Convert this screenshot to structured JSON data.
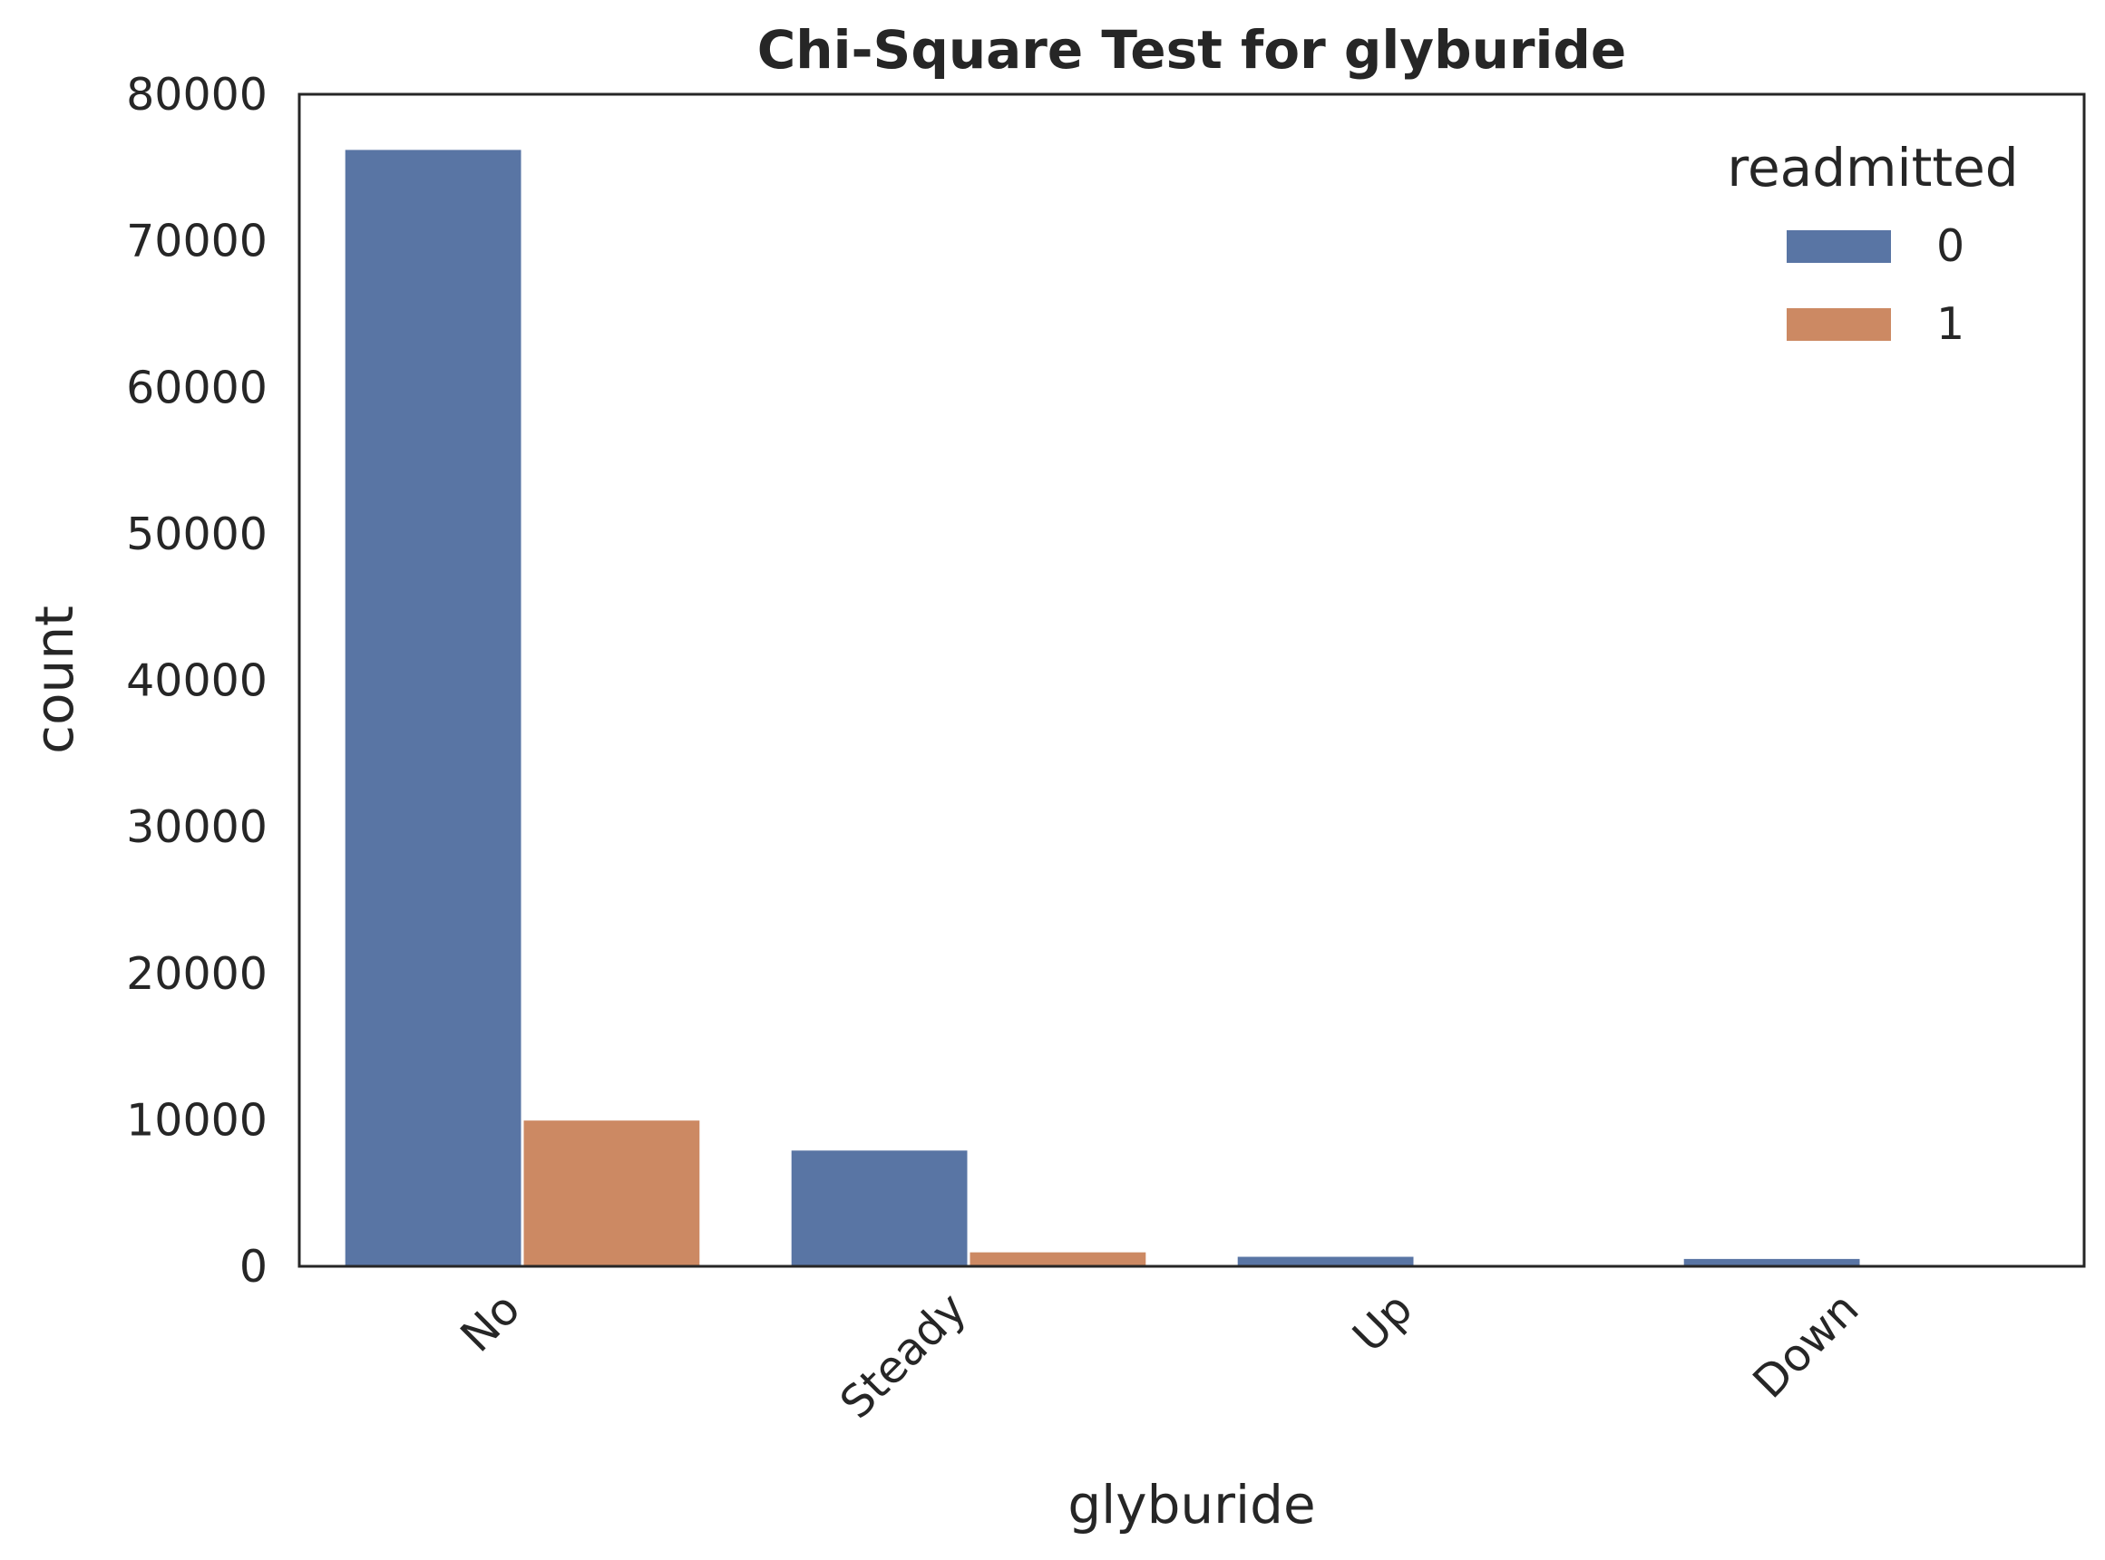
{
  "chart_data": {
    "type": "bar",
    "title": "Chi-Square Test for glyburide",
    "xlabel": "glyburide",
    "ylabel": "count",
    "categories": [
      "No",
      "Steady",
      "Up",
      "Down"
    ],
    "series": [
      {
        "name": "0",
        "values": [
          76200,
          7900,
          650,
          500
        ],
        "color": "#5975a4"
      },
      {
        "name": "1",
        "values": [
          9950,
          950,
          90,
          60
        ],
        "color": "#cc8963"
      }
    ],
    "ylim": [
      0,
      80000
    ],
    "yticks": [
      0,
      10000,
      20000,
      30000,
      40000,
      50000,
      60000,
      70000,
      80000
    ],
    "legend": {
      "title": "readmitted",
      "placement": "top-right"
    },
    "grid": false,
    "xtick_rotation": -45
  }
}
